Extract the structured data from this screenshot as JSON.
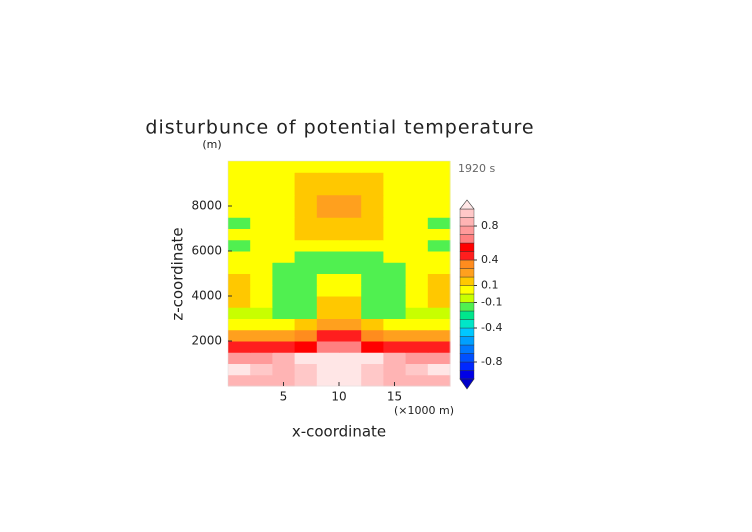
{
  "chart_data": {
    "type": "contour",
    "title": "disturbunce of potential temperature",
    "y_unit": "(m)",
    "time_label": "1920 s",
    "xlabel": "x-coordinate",
    "ylabel": "z-coordinate",
    "x_unit": "(×1000 m)",
    "xlim": [
      0,
      20
    ],
    "ylim": [
      0,
      10000
    ],
    "xticks": [
      5,
      10,
      15
    ],
    "yticks": [
      2000,
      4000,
      6000,
      8000
    ],
    "x": [
      1,
      3,
      5,
      7,
      9,
      11,
      13,
      15,
      17,
      19
    ],
    "y": [
      250,
      750,
      1250,
      1750,
      2250,
      2750,
      3250,
      3750,
      4250,
      4750,
      5250,
      5750,
      6250,
      6750,
      7250,
      7750,
      8250,
      8750,
      9250,
      9750
    ],
    "z": [
      [
        0.85,
        0.85,
        0.85,
        0.9,
        1.05,
        1.05,
        0.9,
        0.85,
        0.85,
        0.85
      ],
      [
        1.0,
        0.9,
        0.85,
        0.9,
        1.05,
        1.05,
        0.9,
        0.85,
        0.9,
        1.0
      ],
      [
        0.7,
        0.75,
        0.8,
        1.0,
        1.05,
        1.05,
        1.0,
        0.8,
        0.75,
        0.7
      ],
      [
        0.45,
        0.45,
        0.45,
        0.5,
        0.6,
        0.6,
        0.5,
        0.45,
        0.45,
        0.45
      ],
      [
        0.25,
        0.25,
        0.25,
        0.3,
        0.4,
        0.4,
        0.3,
        0.25,
        0.25,
        0.25
      ],
      [
        0.05,
        0.05,
        0.05,
        0.1,
        0.25,
        0.25,
        0.1,
        0.05,
        0.05,
        0.05
      ],
      [
        -0.05,
        -0.05,
        -0.15,
        -0.15,
        0.15,
        0.15,
        -0.15,
        -0.15,
        -0.05,
        -0.05
      ],
      [
        0.15,
        0.05,
        -0.15,
        -0.15,
        0.1,
        0.1,
        -0.15,
        -0.15,
        0.05,
        0.15
      ],
      [
        0.15,
        0.05,
        -0.15,
        -0.15,
        0.05,
        0.05,
        -0.15,
        -0.15,
        0.05,
        0.15
      ],
      [
        0.12,
        0.02,
        -0.12,
        -0.12,
        0.02,
        0.02,
        -0.12,
        -0.12,
        0.02,
        0.12
      ],
      [
        0.0,
        0.0,
        -0.12,
        -0.12,
        -0.12,
        -0.12,
        -0.12,
        -0.12,
        0.0,
        0.0
      ],
      [
        0.0,
        0.0,
        0.0,
        -0.11,
        -0.11,
        -0.11,
        -0.11,
        0.0,
        0.0,
        0.0
      ],
      [
        -0.12,
        0.0,
        0.0,
        0.0,
        0.0,
        0.0,
        0.0,
        0.0,
        0.0,
        -0.12
      ],
      [
        0.0,
        0.0,
        0.0,
        0.12,
        0.12,
        0.12,
        0.12,
        0.0,
        0.0,
        0.0
      ],
      [
        -0.12,
        0.0,
        0.0,
        0.15,
        0.15,
        0.15,
        0.15,
        0.0,
        0.0,
        -0.12
      ],
      [
        0.0,
        0.0,
        0.0,
        0.15,
        0.25,
        0.25,
        0.15,
        0.0,
        0.0,
        0.0
      ],
      [
        0.0,
        0.0,
        0.0,
        0.15,
        0.25,
        0.25,
        0.15,
        0.0,
        0.0,
        0.0
      ],
      [
        0.0,
        0.0,
        0.0,
        0.12,
        0.15,
        0.15,
        0.12,
        0.0,
        0.0,
        0.0
      ],
      [
        0.0,
        0.0,
        0.0,
        0.12,
        0.12,
        0.12,
        0.12,
        0.0,
        0.0,
        0.0
      ],
      [
        0.0,
        0.0,
        0.0,
        0.0,
        0.0,
        0.0,
        0.0,
        0.0,
        0.0,
        0.0
      ]
    ],
    "levels": [
      -1.0,
      -0.9,
      -0.8,
      -0.7,
      -0.6,
      -0.5,
      -0.4,
      -0.3,
      -0.2,
      -0.1,
      0.0,
      0.1,
      0.2,
      0.3,
      0.4,
      0.5,
      0.6,
      0.7,
      0.8,
      0.9,
      1.0
    ],
    "colors": [
      "#0000e6",
      "#0028ff",
      "#0050ff",
      "#0078ff",
      "#00a0ff",
      "#00c8ff",
      "#00e6c8",
      "#00e68c",
      "#50f050",
      "#c8ff00",
      "#ffff00",
      "#ffc800",
      "#ffa01e",
      "#ff8c1e",
      "#ff1e1e",
      "#ff0000",
      "#ff8080",
      "#ff9a9a",
      "#ffb4b4",
      "#ffc8c8"
    ],
    "under_color": "#0000c8",
    "over_color": "#ffe6e6",
    "cbar_ticks": [
      -0.8,
      -0.4,
      -0.1,
      0.1,
      0.4,
      0.8
    ]
  }
}
